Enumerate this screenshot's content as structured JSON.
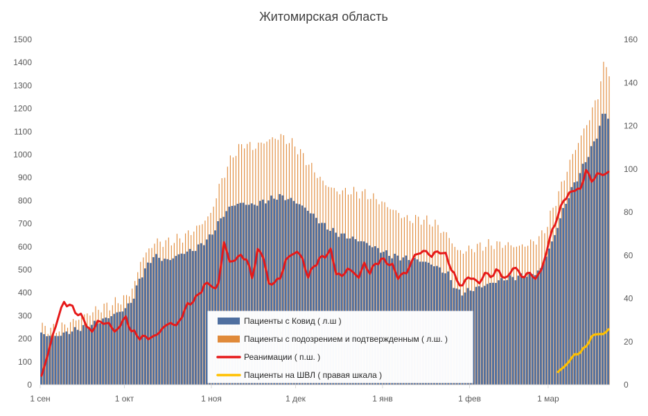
{
  "chart_data": {
    "type": "bar",
    "title": "Житомирская область",
    "x_labels": [
      "1 сен",
      "1 окт",
      "1 ноя",
      "1 дек",
      "1 янв",
      "1 фев",
      "1 мар"
    ],
    "x_label_day_index": [
      0,
      30,
      61,
      91,
      122,
      153,
      181
    ],
    "y_left_ticks": [
      0,
      100,
      200,
      300,
      400,
      500,
      600,
      700,
      800,
      900,
      1000,
      1100,
      1200,
      1300,
      1400,
      1500
    ],
    "y_left_range": [
      0,
      1500
    ],
    "y_right_ticks": [
      0,
      20,
      40,
      60,
      80,
      100,
      120,
      140,
      160
    ],
    "y_right_range": [
      0,
      160
    ],
    "colors": {
      "covid": "#4F6FA0",
      "suspected": "#E08A3A",
      "reanimation": "#E61919",
      "ventilation": "#FFC000",
      "axis": "#D9D9D9"
    },
    "legend": [
      {
        "label": "Пациенты с Ковид ( л.ш )",
        "color": "#4F6FA0",
        "kind": "bar"
      },
      {
        "label": "Пациенты с подозрением и подтвержденным ( л.ш. )",
        "color": "#E08A3A",
        "kind": "bar"
      },
      {
        "label": "Реанимации ( п.ш. )",
        "color": "#E61919",
        "kind": "line"
      },
      {
        "label": "Пациенты на ШВЛ ( правая шкала )",
        "color": "#FFC000",
        "kind": "line"
      }
    ],
    "series_anchors": {
      "covid": [
        [
          0,
          220
        ],
        [
          5,
          210
        ],
        [
          10,
          230
        ],
        [
          15,
          250
        ],
        [
          20,
          270
        ],
        [
          25,
          300
        ],
        [
          30,
          330
        ],
        [
          33,
          380
        ],
        [
          35,
          460
        ],
        [
          37,
          500
        ],
        [
          40,
          560
        ],
        [
          45,
          540
        ],
        [
          50,
          570
        ],
        [
          55,
          590
        ],
        [
          60,
          640
        ],
        [
          63,
          700
        ],
        [
          65,
          740
        ],
        [
          68,
          780
        ],
        [
          72,
          790
        ],
        [
          75,
          780
        ],
        [
          80,
          800
        ],
        [
          85,
          820
        ],
        [
          90,
          800
        ],
        [
          95,
          760
        ],
        [
          100,
          700
        ],
        [
          105,
          660
        ],
        [
          110,
          640
        ],
        [
          115,
          620
        ],
        [
          120,
          590
        ],
        [
          125,
          560
        ],
        [
          130,
          550
        ],
        [
          135,
          540
        ],
        [
          140,
          520
        ],
        [
          145,
          480
        ],
        [
          148,
          410
        ],
        [
          150,
          400
        ],
        [
          155,
          420
        ],
        [
          160,
          440
        ],
        [
          165,
          460
        ],
        [
          170,
          470
        ],
        [
          175,
          480
        ],
        [
          178,
          500
        ],
        [
          180,
          560
        ],
        [
          183,
          650
        ],
        [
          186,
          760
        ],
        [
          189,
          850
        ],
        [
          192,
          920
        ],
        [
          195,
          1000
        ],
        [
          198,
          1080
        ],
        [
          200,
          1170
        ],
        [
          201,
          1180
        ],
        [
          202,
          1160
        ]
      ],
      "suspected": [
        [
          0,
          250
        ],
        [
          5,
          240
        ],
        [
          10,
          270
        ],
        [
          15,
          300
        ],
        [
          20,
          330
        ],
        [
          25,
          350
        ],
        [
          30,
          380
        ],
        [
          33,
          440
        ],
        [
          35,
          540
        ],
        [
          37,
          570
        ],
        [
          40,
          620
        ],
        [
          45,
          620
        ],
        [
          50,
          640
        ],
        [
          55,
          680
        ],
        [
          60,
          740
        ],
        [
          63,
          860
        ],
        [
          65,
          920
        ],
        [
          68,
          1000
        ],
        [
          72,
          1050
        ],
        [
          75,
          1030
        ],
        [
          80,
          1060
        ],
        [
          85,
          1080
        ],
        [
          90,
          1040
        ],
        [
          95,
          960
        ],
        [
          100,
          880
        ],
        [
          105,
          840
        ],
        [
          110,
          840
        ],
        [
          115,
          830
        ],
        [
          120,
          800
        ],
        [
          125,
          760
        ],
        [
          130,
          720
        ],
        [
          135,
          720
        ],
        [
          140,
          700
        ],
        [
          145,
          640
        ],
        [
          148,
          580
        ],
        [
          150,
          580
        ],
        [
          155,
          600
        ],
        [
          160,
          610
        ],
        [
          165,
          610
        ],
        [
          170,
          600
        ],
        [
          175,
          620
        ],
        [
          178,
          650
        ],
        [
          180,
          700
        ],
        [
          183,
          800
        ],
        [
          186,
          900
        ],
        [
          189,
          1000
        ],
        [
          192,
          1080
        ],
        [
          195,
          1160
        ],
        [
          198,
          1260
        ],
        [
          200,
          1380
        ],
        [
          201,
          1390
        ],
        [
          202,
          1360
        ]
      ],
      "reanimation": [
        [
          0,
          4
        ],
        [
          3,
          18
        ],
        [
          6,
          32
        ],
        [
          8,
          38
        ],
        [
          10,
          37
        ],
        [
          12,
          34
        ],
        [
          14,
          32
        ],
        [
          16,
          28
        ],
        [
          18,
          24
        ],
        [
          20,
          30
        ],
        [
          22,
          28
        ],
        [
          24,
          29
        ],
        [
          26,
          24
        ],
        [
          28,
          28
        ],
        [
          30,
          31
        ],
        [
          32,
          25
        ],
        [
          35,
          22
        ],
        [
          38,
          22
        ],
        [
          40,
          22
        ],
        [
          43,
          26
        ],
        [
          46,
          29
        ],
        [
          48,
          27
        ],
        [
          52,
          37
        ],
        [
          55,
          40
        ],
        [
          58,
          46
        ],
        [
          60,
          47
        ],
        [
          62,
          44
        ],
        [
          63,
          47
        ],
        [
          65,
          66
        ],
        [
          67,
          57
        ],
        [
          69,
          58
        ],
        [
          71,
          60
        ],
        [
          73,
          58
        ],
        [
          75,
          50
        ],
        [
          77,
          62
        ],
        [
          79,
          60
        ],
        [
          81,
          46
        ],
        [
          83,
          48
        ],
        [
          85,
          49
        ],
        [
          87,
          58
        ],
        [
          89,
          60
        ],
        [
          91,
          62
        ],
        [
          93,
          58
        ],
        [
          95,
          50
        ],
        [
          97,
          55
        ],
        [
          99,
          58
        ],
        [
          101,
          60
        ],
        [
          103,
          62
        ],
        [
          105,
          52
        ],
        [
          107,
          50
        ],
        [
          109,
          54
        ],
        [
          111,
          52
        ],
        [
          113,
          50
        ],
        [
          115,
          56
        ],
        [
          117,
          52
        ],
        [
          119,
          56
        ],
        [
          121,
          58
        ],
        [
          123,
          57
        ],
        [
          125,
          55
        ],
        [
          127,
          50
        ],
        [
          130,
          52
        ],
        [
          133,
          60
        ],
        [
          136,
          62
        ],
        [
          139,
          60
        ],
        [
          142,
          62
        ],
        [
          144,
          60
        ],
        [
          146,
          54
        ],
        [
          148,
          48
        ],
        [
          150,
          46
        ],
        [
          152,
          50
        ],
        [
          154,
          49
        ],
        [
          156,
          47
        ],
        [
          158,
          52
        ],
        [
          160,
          50
        ],
        [
          162,
          53
        ],
        [
          164,
          51
        ],
        [
          166,
          49
        ],
        [
          168,
          55
        ],
        [
          170,
          52
        ],
        [
          172,
          50
        ],
        [
          174,
          52
        ],
        [
          176,
          49
        ],
        [
          178,
          53
        ],
        [
          180,
          62
        ],
        [
          182,
          72
        ],
        [
          184,
          78
        ],
        [
          186,
          86
        ],
        [
          188,
          88
        ],
        [
          190,
          91
        ],
        [
          192,
          90
        ],
        [
          194,
          100
        ],
        [
          196,
          94
        ],
        [
          198,
          98
        ],
        [
          200,
          97
        ],
        [
          202,
          99
        ]
      ],
      "ventilation": [
        [
          184,
          6
        ],
        [
          186,
          8
        ],
        [
          188,
          11
        ],
        [
          190,
          14
        ],
        [
          192,
          15
        ],
        [
          194,
          18
        ],
        [
          196,
          22
        ],
        [
          198,
          24
        ],
        [
          200,
          23
        ],
        [
          202,
          26
        ]
      ]
    }
  }
}
